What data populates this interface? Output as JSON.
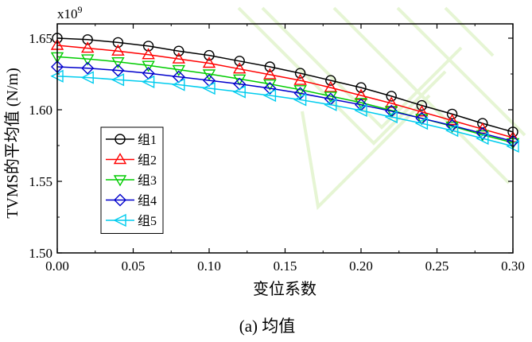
{
  "chart_data": {
    "type": "line",
    "xlabel": "变位系数",
    "ylabel": "TVMS的平均值 (N/m)",
    "exponent_label": "x10",
    "exponent_power": "9",
    "caption": "(a)  均值",
    "xlim": [
      0.0,
      0.3
    ],
    "ylim": [
      1.5,
      1.66
    ],
    "x_ticks": [
      0.0,
      0.05,
      0.1,
      0.15,
      0.2,
      0.25,
      0.3
    ],
    "x_tick_labels": [
      "0.00",
      "0.05",
      "0.10",
      "0.15",
      "0.20",
      "0.25",
      "0.30"
    ],
    "y_ticks": [
      1.5,
      1.55,
      1.6,
      1.65
    ],
    "y_tick_labels": [
      "1.50",
      "1.55",
      "1.60",
      "1.65"
    ],
    "x": [
      0.0,
      0.02,
      0.04,
      0.06,
      0.08,
      0.1,
      0.12,
      0.14,
      0.16,
      0.18,
      0.2,
      0.22,
      0.24,
      0.26,
      0.28,
      0.3
    ],
    "legend_position": "center-left",
    "grid": false,
    "series": [
      {
        "name": "组1",
        "marker": "circle",
        "color": "#000000",
        "values": [
          1.65,
          1.649,
          1.647,
          1.6445,
          1.641,
          1.638,
          1.634,
          1.63,
          1.6255,
          1.6205,
          1.6155,
          1.6095,
          1.603,
          1.597,
          1.5905,
          1.5845
        ]
      },
      {
        "name": "组2",
        "marker": "triangle-up",
        "color": "#ff0000",
        "values": [
          1.645,
          1.643,
          1.641,
          1.6385,
          1.6355,
          1.6325,
          1.6285,
          1.6245,
          1.6205,
          1.6155,
          1.61,
          1.6045,
          1.5985,
          1.5925,
          1.5865,
          1.5805
        ]
      },
      {
        "name": "组3",
        "marker": "triangle-down",
        "color": "#00cc00",
        "values": [
          1.637,
          1.6355,
          1.6335,
          1.631,
          1.628,
          1.625,
          1.6215,
          1.618,
          1.614,
          1.6095,
          1.605,
          1.5995,
          1.594,
          1.5885,
          1.5825,
          1.577
        ]
      },
      {
        "name": "组4",
        "marker": "diamond",
        "color": "#0000cc",
        "values": [
          1.63,
          1.629,
          1.6275,
          1.6255,
          1.623,
          1.6205,
          1.618,
          1.615,
          1.6115,
          1.6075,
          1.6035,
          1.599,
          1.594,
          1.589,
          1.5835,
          1.578
        ]
      },
      {
        "name": "组5",
        "marker": "triangle-left",
        "color": "#00ccee",
        "values": [
          1.6235,
          1.6225,
          1.621,
          1.6195,
          1.6175,
          1.615,
          1.6125,
          1.61,
          1.607,
          1.6035,
          1.5995,
          1.595,
          1.5905,
          1.5855,
          1.58,
          1.5745
        ]
      }
    ]
  }
}
